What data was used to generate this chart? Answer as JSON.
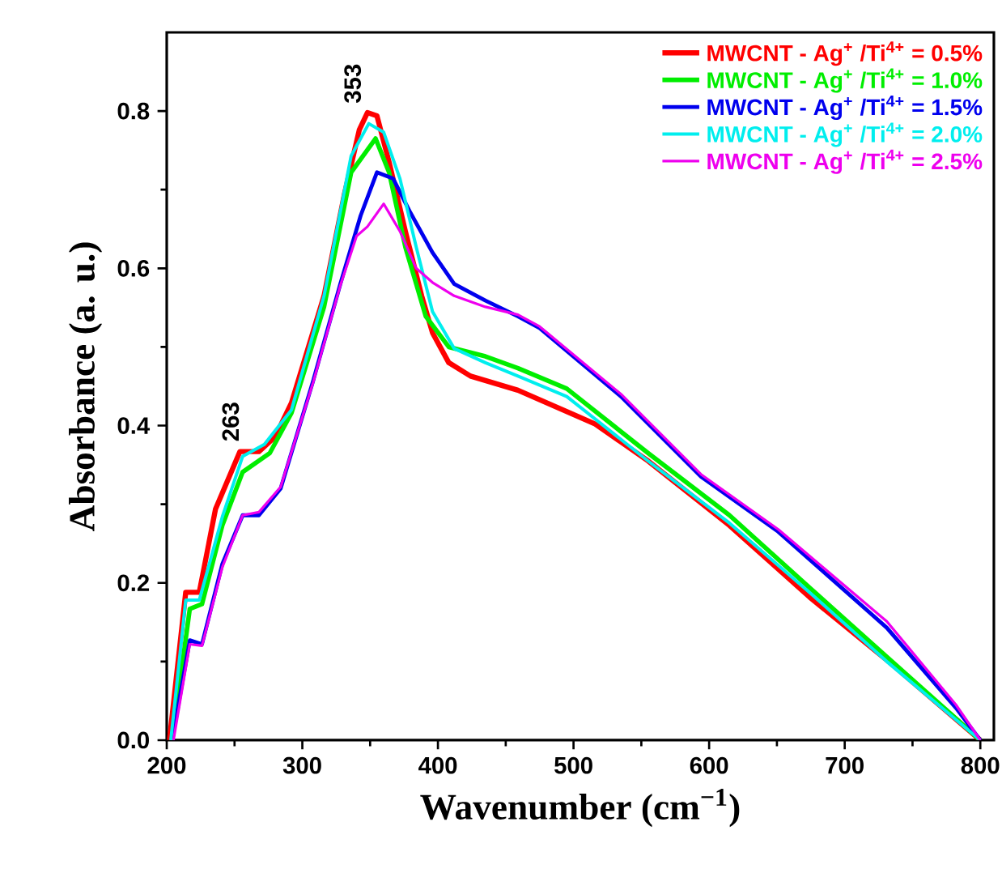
{
  "chart_data": {
    "type": "line",
    "xlabel": "Wavenumber (cm$^{−1}$)",
    "ylabel": "Absorbance (a. u.)",
    "xlim": [
      200,
      810
    ],
    "ylim": [
      0,
      0.9
    ],
    "xticks": [
      200,
      300,
      400,
      500,
      600,
      700,
      800
    ],
    "yticks": [
      {
        "value": 0,
        "label": "0.0"
      },
      {
        "value": 0.2,
        "label": "0.2"
      },
      {
        "value": 0.4,
        "label": "0.4"
      },
      {
        "value": 0.6,
        "label": "0.6"
      },
      {
        "value": 0.8,
        "label": "0.8"
      }
    ],
    "legend": "top right",
    "grid": false,
    "marker": "none",
    "line_style": "solid",
    "annotations": [
      {
        "text": "263",
        "x": 263,
        "y": 0.37
      },
      {
        "text": "353",
        "x": 353,
        "y": 0.8
      }
    ],
    "series": [
      {
        "name": "MWCNT - Ag$^{+}$ /Ti$^{4+}$ = 0.5%",
        "color": "#ff0000",
        "x": [
          202,
          214,
          224,
          236,
          254,
          268,
          280,
          292,
          316,
          331,
          342,
          348,
          355,
          364,
          376,
          388,
          396,
          408,
          424,
          459,
          516,
          555,
          615,
          674,
          731,
          800
        ],
        "values": [
          0,
          0.188,
          0.188,
          0.294,
          0.367,
          0.367,
          0.386,
          0.429,
          0.565,
          0.694,
          0.776,
          0.798,
          0.794,
          0.735,
          0.647,
          0.565,
          0.518,
          0.48,
          0.463,
          0.445,
          0.402,
          0.355,
          0.273,
          0.182,
          0.102,
          0
        ]
      },
      {
        "name": "MWCNT - Ag$^{+}$ /Ti$^{4+}$ = 1.0%",
        "color": "#00ee00",
        "x": [
          204,
          217,
          226,
          241,
          256,
          276,
          292,
          316,
          336,
          354,
          364,
          376,
          391,
          408,
          435,
          459,
          495,
          555,
          615,
          674,
          731,
          800
        ],
        "values": [
          0,
          0.167,
          0.173,
          0.273,
          0.341,
          0.365,
          0.416,
          0.551,
          0.722,
          0.765,
          0.722,
          0.627,
          0.539,
          0.5,
          0.488,
          0.473,
          0.447,
          0.365,
          0.286,
          0.194,
          0.106,
          0
        ]
      },
      {
        "name": "MWCNT - Ag$^{+}$ /Ti$^{4+}$ = 1.5%",
        "color": "#0000ee",
        "x": [
          204,
          217,
          226,
          241,
          256,
          268,
          284,
          308,
          328,
          343,
          355,
          367,
          379,
          396,
          412,
          435,
          459,
          475,
          535,
          594,
          651,
          731,
          782,
          800
        ],
        "values": [
          0,
          0.127,
          0.122,
          0.224,
          0.286,
          0.286,
          0.32,
          0.457,
          0.58,
          0.667,
          0.722,
          0.714,
          0.673,
          0.62,
          0.58,
          0.559,
          0.539,
          0.524,
          0.437,
          0.335,
          0.265,
          0.143,
          0.041,
          0
        ]
      },
      {
        "name": "MWCNT - Ag$^{+}$ /Ti$^{4+}$ = 2.0%",
        "color": "#00eeee",
        "x": [
          203,
          214,
          224,
          241,
          256,
          272,
          292,
          316,
          336,
          349,
          360,
          372,
          384,
          396,
          412,
          435,
          459,
          495,
          555,
          615,
          674,
          731,
          800
        ],
        "values": [
          0,
          0.178,
          0.178,
          0.284,
          0.361,
          0.376,
          0.42,
          0.565,
          0.743,
          0.784,
          0.773,
          0.714,
          0.627,
          0.545,
          0.498,
          0.48,
          0.463,
          0.437,
          0.355,
          0.276,
          0.188,
          0.1,
          0
        ]
      },
      {
        "name": "MWCNT - Ag$^{+}$ /Ti$^{4+}$ = 2.5%",
        "color": "#ee00ee",
        "x": [
          205,
          217,
          226,
          241,
          256,
          268,
          284,
          308,
          328,
          340,
          348,
          360,
          372,
          384,
          396,
          412,
          435,
          459,
          475,
          535,
          594,
          651,
          731,
          782,
          800
        ],
        "values": [
          0,
          0.122,
          0.12,
          0.22,
          0.286,
          0.29,
          0.322,
          0.455,
          0.578,
          0.641,
          0.653,
          0.682,
          0.647,
          0.6,
          0.582,
          0.565,
          0.551,
          0.541,
          0.526,
          0.44,
          0.338,
          0.268,
          0.151,
          0.045,
          0
        ]
      }
    ]
  }
}
